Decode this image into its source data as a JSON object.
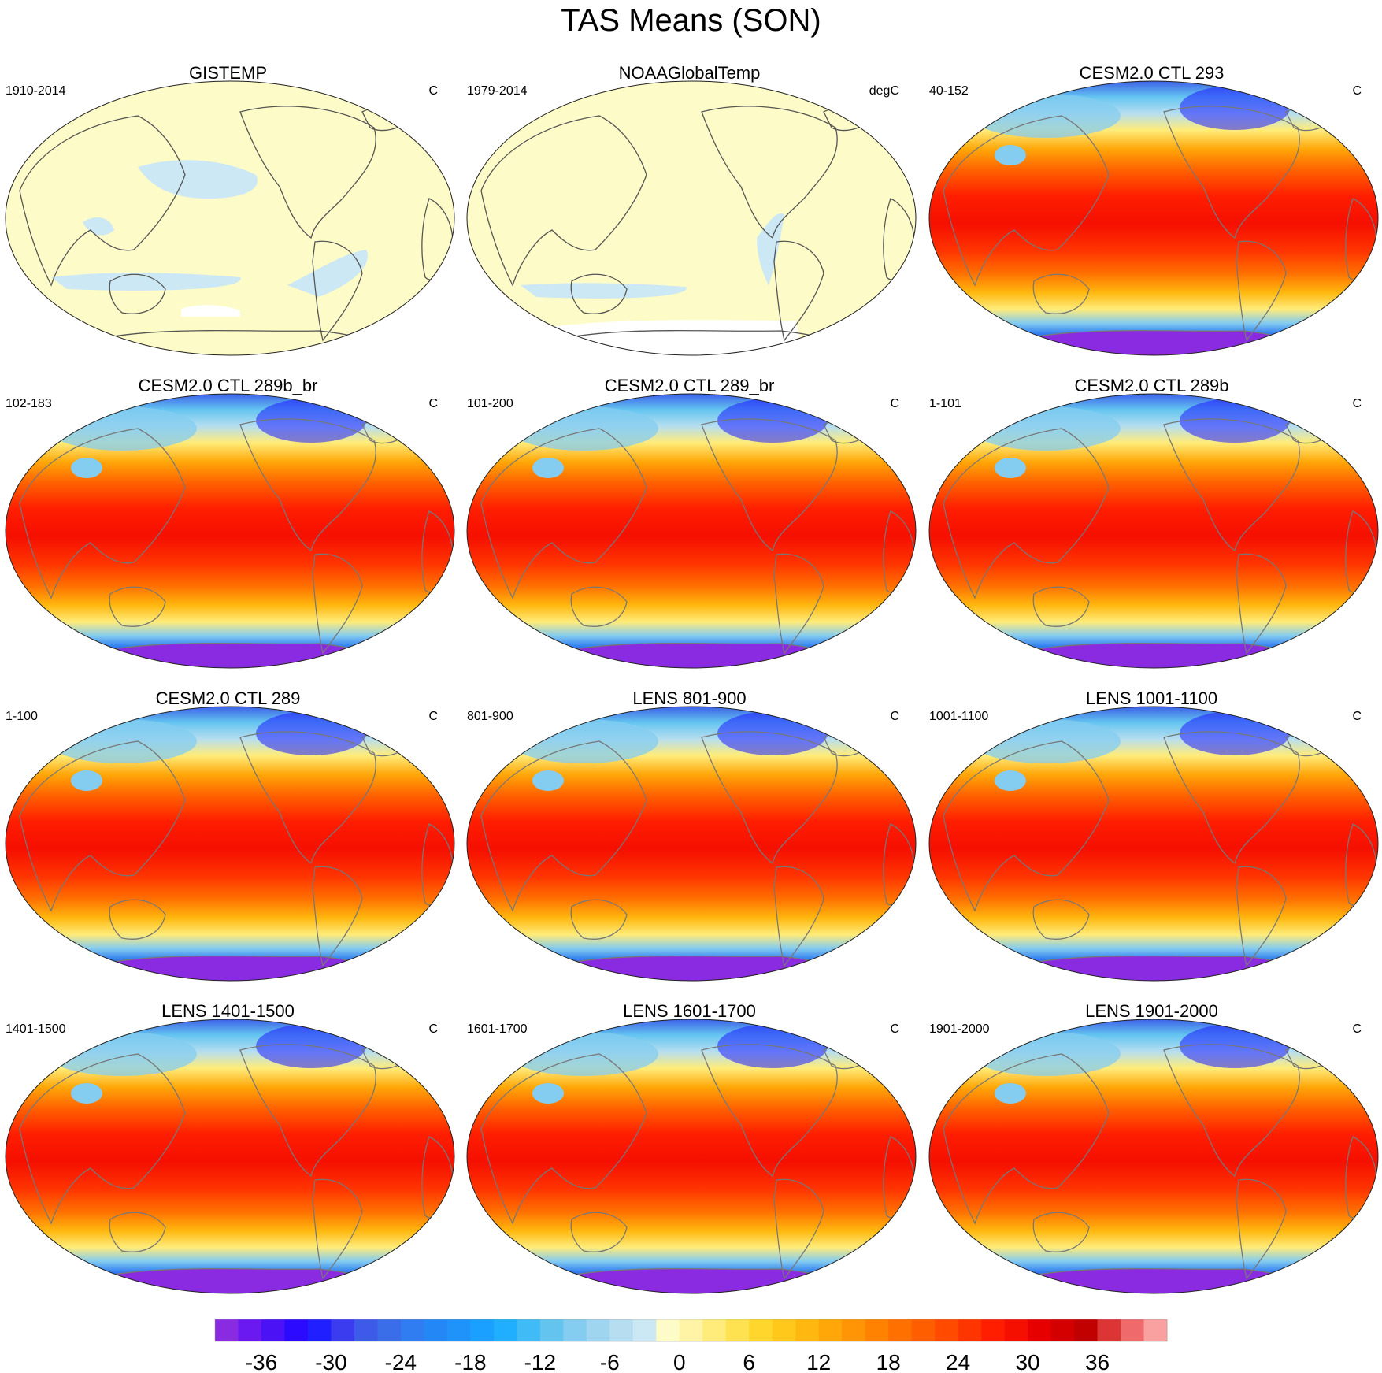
{
  "title": "TAS Means (SON)",
  "panels": [
    {
      "title": "GISTEMP",
      "left": "1910-2014",
      "right": "C",
      "style": "obs"
    },
    {
      "title": "NOAAGlobalTemp",
      "left": "1979-2014",
      "right": "degC",
      "style": "obs"
    },
    {
      "title": "CESM2.0 CTL 293",
      "left": "40-152",
      "right": "C",
      "style": "model"
    },
    {
      "title": "CESM2.0 CTL 289b_br",
      "left": "102-183",
      "right": "C",
      "style": "model"
    },
    {
      "title": "CESM2.0 CTL 289_br",
      "left": "101-200",
      "right": "C",
      "style": "model"
    },
    {
      "title": "CESM2.0 CTL 289b",
      "left": "1-101",
      "right": "C",
      "style": "model"
    },
    {
      "title": "CESM2.0 CTL 289",
      "left": "1-100",
      "right": "C",
      "style": "model"
    },
    {
      "title": "LENS 801-900",
      "left": "801-900",
      "right": "C",
      "style": "model"
    },
    {
      "title": "LENS 1001-1100",
      "left": "1001-1100",
      "right": "C",
      "style": "model"
    },
    {
      "title": "LENS 1401-1500",
      "left": "1401-1500",
      "right": "C",
      "style": "model"
    },
    {
      "title": "LENS 1601-1700",
      "left": "1601-1700",
      "right": "C",
      "style": "model"
    },
    {
      "title": "LENS 1901-2000",
      "left": "1901-2000",
      "right": "C",
      "style": "model"
    }
  ],
  "colorbar": {
    "levels": [
      -40,
      -38,
      -36,
      -34,
      -32,
      -30,
      -28,
      -26,
      -24,
      -22,
      -20,
      -18,
      -16,
      -14,
      -12,
      -10,
      -8,
      -6,
      -4,
      -2,
      0,
      2,
      4,
      6,
      8,
      10,
      12,
      14,
      16,
      18,
      20,
      22,
      24,
      26,
      28,
      30,
      32,
      34,
      36,
      38,
      40,
      42
    ],
    "colors": [
      "#8a2be2",
      "#6a1af0",
      "#4b12f5",
      "#2c0aff",
      "#1f1fff",
      "#3b3bf0",
      "#3d5be8",
      "#3a6ee8",
      "#2f7df0",
      "#2388f5",
      "#1f93fa",
      "#1aa0ff",
      "#20aeff",
      "#40bbf5",
      "#63c4f0",
      "#84ccf0",
      "#a0d5f0",
      "#b6def0",
      "#cce8f5",
      "#fdfbc7",
      "#fff4a5",
      "#ffec7a",
      "#ffe24f",
      "#ffd62b",
      "#ffc81a",
      "#ffb80f",
      "#ffa608",
      "#ff9404",
      "#ff8200",
      "#ff7000",
      "#ff5e00",
      "#ff4a00",
      "#ff3500",
      "#ff1e00",
      "#f50f00",
      "#e60000",
      "#d40000",
      "#c10000",
      "#dd3535",
      "#ef6a6a",
      "#f9a0a0"
    ],
    "tick_labels": [
      "-36",
      "-30",
      "-24",
      "-18",
      "-12",
      "-6",
      "0",
      "6",
      "12",
      "18",
      "24",
      "30",
      "36"
    ],
    "tick_values": [
      -36,
      -30,
      -24,
      -18,
      -12,
      -6,
      0,
      6,
      12,
      18,
      24,
      30,
      36
    ]
  }
}
